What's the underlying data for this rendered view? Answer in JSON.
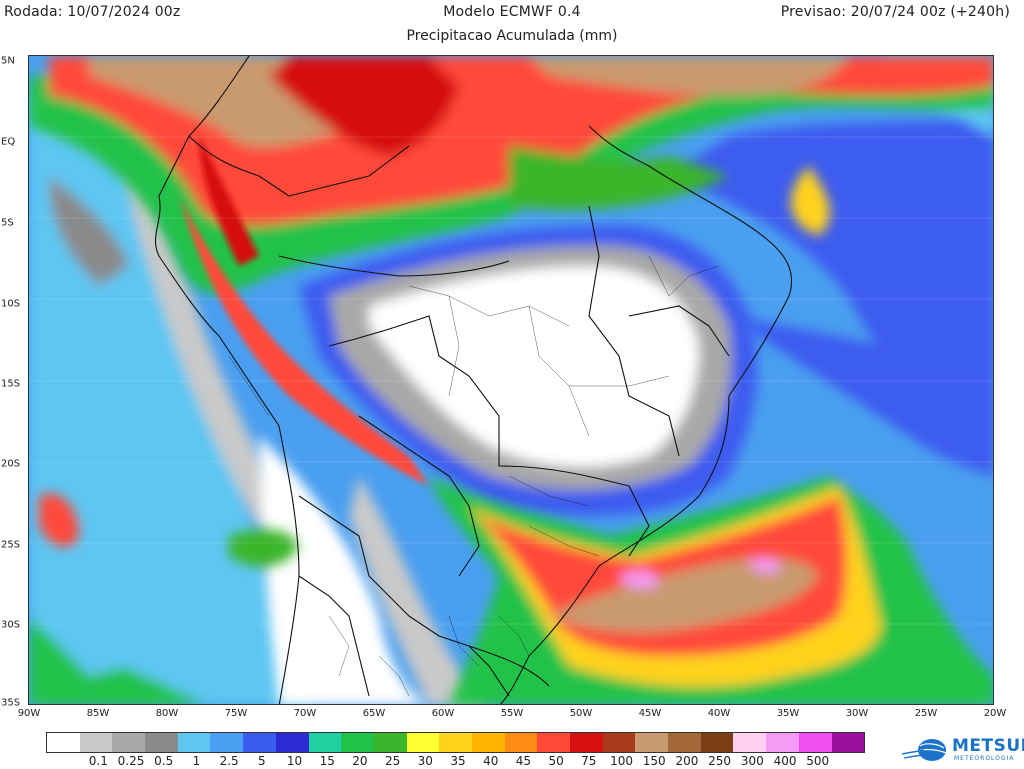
{
  "header": {
    "run": "Rodada: 10/07/2024 00z",
    "model": "Modelo ECMWF 0.4",
    "forecast": "Previsao: 20/07/24 00z (+240h)",
    "variable": "Precipitacao Acumulada (mm)"
  },
  "map": {
    "lon_range": [
      -90,
      -20
    ],
    "lat_range": [
      -35,
      5
    ],
    "lat_labels": [
      "5N",
      "EQ",
      "5S",
      "10S",
      "15S",
      "20S",
      "25S",
      "30S",
      "35S"
    ],
    "lon_labels": [
      "90W",
      "85W",
      "80W",
      "75W",
      "70W",
      "65W",
      "60W",
      "55W",
      "50W",
      "45W",
      "40W",
      "35W",
      "30W",
      "25W",
      "20W"
    ]
  },
  "legend": {
    "colors": [
      "#ffffff",
      "#c9c9c9",
      "#a8a8a8",
      "#8a8a8a",
      "#5dc6f2",
      "#4a9ff0",
      "#3c5cf0",
      "#2d2ad4",
      "#1fd0a0",
      "#21c24a",
      "#3ab52c",
      "#ffff33",
      "#ffd21c",
      "#ffb400",
      "#ff8c14",
      "#ff4a3a",
      "#d60f0f",
      "#a83a1c",
      "#c99a6e",
      "#a3683a",
      "#7a3e14",
      "#ffd0f0",
      "#f59af5",
      "#f050f0",
      "#9b0f9b"
    ],
    "labels": [
      "0.1",
      "0.25",
      "0.5",
      "1",
      "2.5",
      "5",
      "10",
      "15",
      "20",
      "25",
      "30",
      "35",
      "40",
      "45",
      "50",
      "75",
      "100",
      "150",
      "200",
      "250",
      "300",
      "400",
      "500"
    ]
  },
  "logo": {
    "name": "METSUL",
    "sub": "METEOROLOGIA",
    "icon": "globe-icon"
  }
}
